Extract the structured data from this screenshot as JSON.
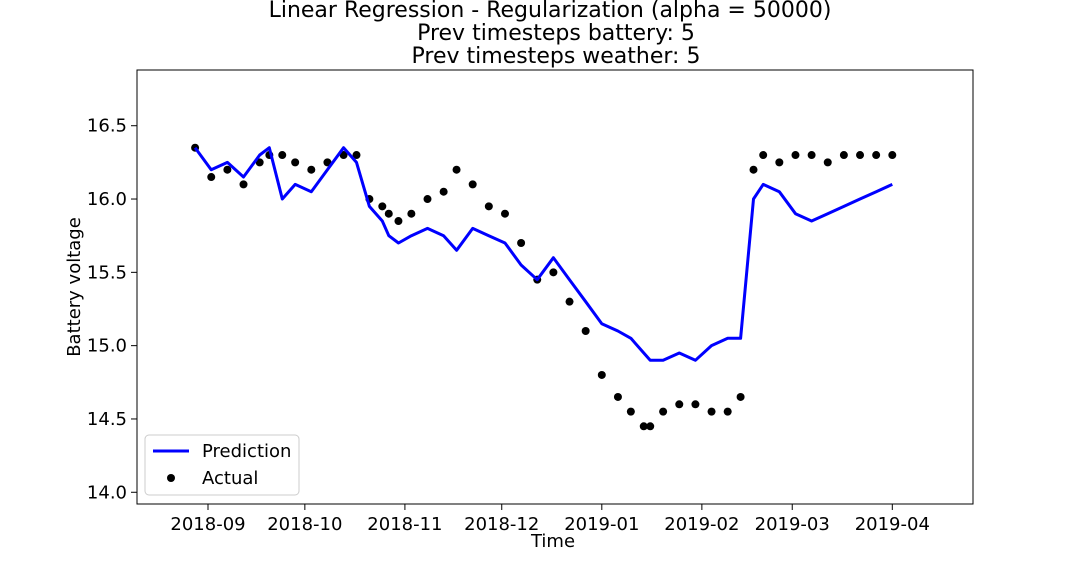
{
  "chart_data": {
    "type": "line",
    "title": [
      "Linear Regression - Regularization (alpha = 50000)",
      "Prev timesteps battery: 5",
      "Prev timesteps weather: 5"
    ],
    "xlabel": "Time",
    "ylabel": "Battery voltage",
    "xlim": [
      "2018-08-10",
      "2019-04-26"
    ],
    "ylim": [
      13.92,
      16.88
    ],
    "x_ticks": [
      "2018-09",
      "2018-10",
      "2018-11",
      "2018-12",
      "2019-01",
      "2019-02",
      "2019-03",
      "2019-04"
    ],
    "y_ticks": [
      "14.0",
      "14.5",
      "15.0",
      "15.5",
      "16.0",
      "16.5"
    ],
    "grid": false,
    "legend_position": "lower-left",
    "colors": {
      "Prediction": "#0000ff",
      "Actual": "#000000"
    },
    "series": [
      {
        "name": "Prediction",
        "kind": "line",
        "x": [
          "2018-08-28",
          "2018-09-02",
          "2018-09-07",
          "2018-09-12",
          "2018-09-17",
          "2018-09-20",
          "2018-09-24",
          "2018-09-28",
          "2018-10-03",
          "2018-10-08",
          "2018-10-13",
          "2018-10-17",
          "2018-10-21",
          "2018-10-25",
          "2018-10-27",
          "2018-10-30",
          "2018-11-03",
          "2018-11-08",
          "2018-11-13",
          "2018-11-17",
          "2018-11-22",
          "2018-11-27",
          "2018-12-02",
          "2018-12-07",
          "2018-12-12",
          "2018-12-17",
          "2018-12-22",
          "2018-12-27",
          "2019-01-01",
          "2019-01-06",
          "2019-01-10",
          "2019-01-14",
          "2019-01-16",
          "2019-01-20",
          "2019-01-25",
          "2019-01-30",
          "2019-02-04",
          "2019-02-09",
          "2019-02-13",
          "2019-02-17",
          "2019-02-20",
          "2019-02-25",
          "2019-03-02",
          "2019-03-07",
          "2019-03-12",
          "2019-03-17",
          "2019-03-22",
          "2019-03-27",
          "2019-04-01"
        ],
        "y": [
          16.35,
          16.2,
          16.25,
          16.15,
          16.3,
          16.35,
          16.0,
          16.1,
          16.05,
          16.2,
          16.35,
          16.25,
          15.95,
          15.85,
          15.75,
          15.7,
          15.75,
          15.8,
          15.75,
          15.65,
          15.8,
          15.75,
          15.7,
          15.55,
          15.45,
          15.6,
          15.45,
          15.3,
          15.15,
          15.1,
          15.05,
          14.95,
          14.9,
          14.9,
          14.95,
          14.9,
          15.0,
          15.05,
          15.05,
          16.0,
          16.1,
          16.05,
          15.9,
          15.85,
          15.9,
          15.95,
          16.0,
          16.05,
          16.1
        ]
      },
      {
        "name": "Actual",
        "kind": "scatter",
        "x": [
          "2018-08-28",
          "2018-09-02",
          "2018-09-07",
          "2018-09-12",
          "2018-09-17",
          "2018-09-20",
          "2018-09-24",
          "2018-09-28",
          "2018-10-03",
          "2018-10-08",
          "2018-10-13",
          "2018-10-17",
          "2018-10-21",
          "2018-10-25",
          "2018-10-27",
          "2018-10-30",
          "2018-11-03",
          "2018-11-08",
          "2018-11-13",
          "2018-11-17",
          "2018-11-22",
          "2018-11-27",
          "2018-12-02",
          "2018-12-07",
          "2018-12-12",
          "2018-12-17",
          "2018-12-22",
          "2018-12-27",
          "2019-01-01",
          "2019-01-06",
          "2019-01-10",
          "2019-01-14",
          "2019-01-16",
          "2019-01-20",
          "2019-01-25",
          "2019-01-30",
          "2019-02-04",
          "2019-02-09",
          "2019-02-13",
          "2019-02-17",
          "2019-02-20",
          "2019-02-25",
          "2019-03-02",
          "2019-03-07",
          "2019-03-12",
          "2019-03-17",
          "2019-03-22",
          "2019-03-27",
          "2019-04-01"
        ],
        "y": [
          16.35,
          16.15,
          16.2,
          16.1,
          16.25,
          16.3,
          16.3,
          16.25,
          16.2,
          16.25,
          16.3,
          16.3,
          16.0,
          15.95,
          15.9,
          15.85,
          15.9,
          16.0,
          16.05,
          16.2,
          16.1,
          15.95,
          15.9,
          15.7,
          15.45,
          15.5,
          15.3,
          15.1,
          14.8,
          14.65,
          14.55,
          14.45,
          14.45,
          14.55,
          14.6,
          14.6,
          14.55,
          14.55,
          14.65,
          16.2,
          16.3,
          16.25,
          16.3,
          16.3,
          16.25,
          16.3,
          16.3,
          16.3,
          16.3
        ]
      }
    ]
  }
}
